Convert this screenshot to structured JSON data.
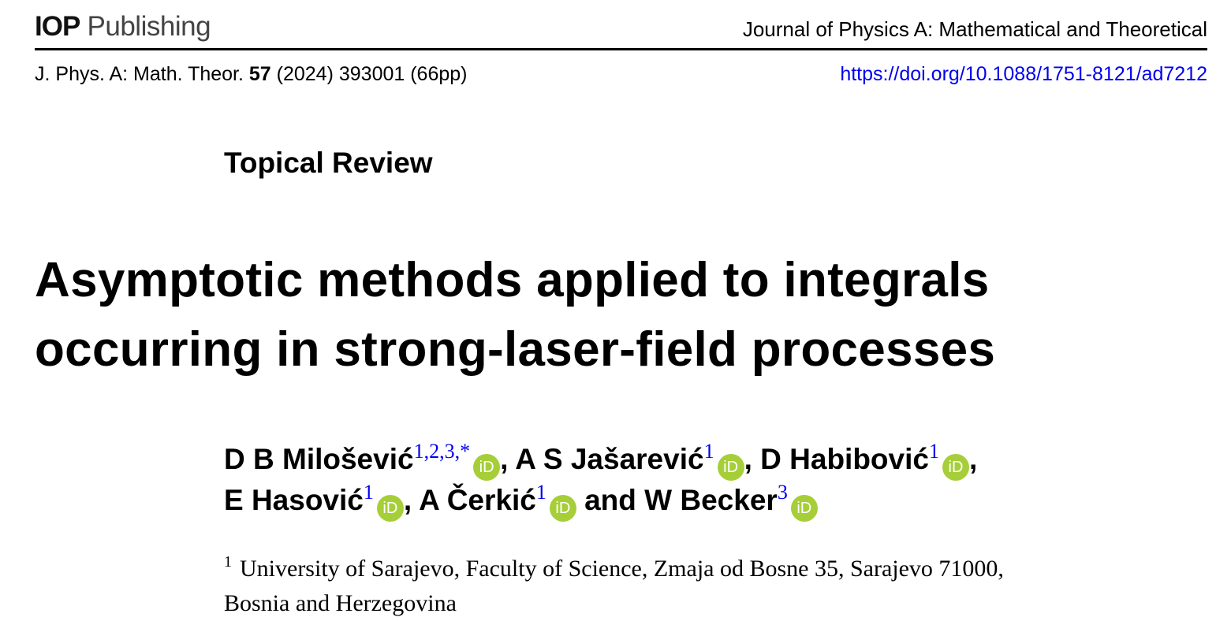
{
  "header": {
    "logo_bold": "IOP",
    "logo_rest": "Publishing",
    "journal": "Journal of Physics A: Mathematical and Theoretical",
    "citation_pre": "J. Phys. A: Math. Theor. ",
    "volume": "57",
    "citation_post": " (2024) 393001 (66pp)",
    "doi": "https://doi.org/10.1088/1751-8121/ad7212"
  },
  "article_type": "Topical Review",
  "title_lines": [
    "Asymptotic methods applied to integrals",
    "occurring in strong-laser-field processes"
  ],
  "orcid_label": "iD",
  "authors": [
    [
      {
        "name": "D B Milošević",
        "sup": "1,2,3,*",
        "sep": ", "
      },
      {
        "name": "A S Jašarević",
        "sup": "1",
        "sep": ", "
      },
      {
        "name": "D Habibović",
        "sup": "1",
        "sep": ","
      }
    ],
    [
      {
        "name": "E Hasović",
        "sup": "1",
        "sep": ", "
      },
      {
        "name": "A Čerkić",
        "sup": "1",
        "sep": " and "
      },
      {
        "name": "W Becker",
        "sup": "3",
        "sep": ""
      }
    ]
  ],
  "affiliation": {
    "mark": "1",
    "lines": [
      "University of Sarajevo, Faculty of Science, Zmaja od Bosne 35, Sarajevo 71000,",
      "Bosnia and Herzegovina"
    ]
  }
}
